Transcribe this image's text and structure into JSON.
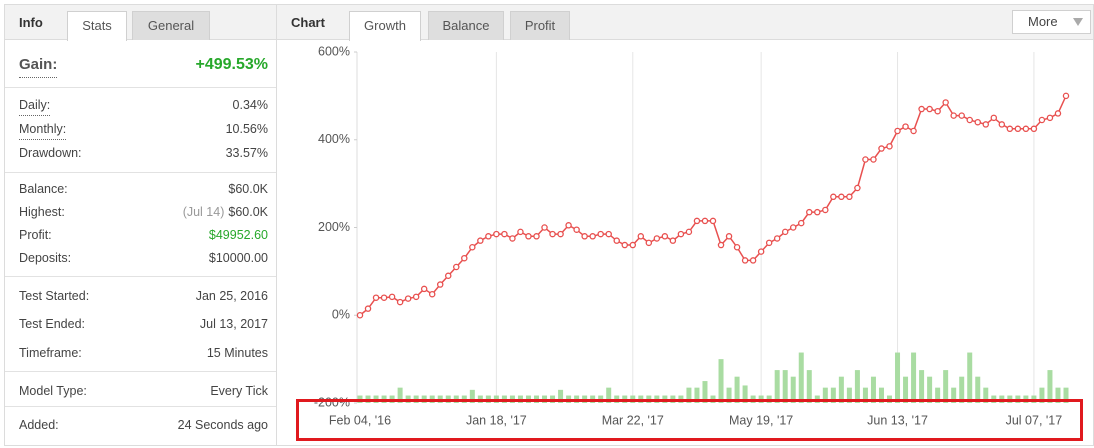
{
  "stats_panel": {
    "title": "Info",
    "tabs": [
      "Stats",
      "General"
    ],
    "gain": {
      "label": "Gain:",
      "value": "+499.53%"
    },
    "sections": [
      [
        {
          "label": "Daily:",
          "value": "0.34%"
        },
        {
          "label": "Monthly:",
          "value": "10.56%"
        },
        {
          "label": "Drawdown:",
          "value": "33.57%"
        }
      ],
      [
        {
          "label": "Balance:",
          "value": "$60.0K"
        },
        {
          "label": "Highest:",
          "note": "(Jul 14)",
          "value": "$60.0K"
        },
        {
          "label": "Profit:",
          "value": "$49952.60"
        },
        {
          "label": "Deposits:",
          "value": "$10000.00"
        }
      ],
      [
        {
          "label": "Test Started:",
          "value": "Jan 25, 2016"
        },
        {
          "label": "Test Ended:",
          "value": "Jul 13, 2017"
        },
        {
          "label": "Timeframe:",
          "value": "15 Minutes"
        }
      ],
      [
        {
          "label": "Model Type:",
          "value": "Every Tick"
        }
      ],
      [
        {
          "label": "Added:",
          "value": "24 Seconds ago"
        }
      ]
    ]
  },
  "chart_panel": {
    "title": "Chart",
    "tabs": [
      "Growth",
      "Balance",
      "Profit"
    ],
    "more": "More"
  },
  "chart_data": {
    "type": "line",
    "categories": [
      "Feb 04, '16",
      null,
      null,
      null,
      null,
      null,
      null,
      null,
      null,
      null,
      null,
      null,
      null,
      null,
      null,
      null,
      null,
      "Jan 18, '17",
      null,
      null,
      null,
      null,
      null,
      null,
      null,
      null,
      null,
      null,
      null,
      null,
      null,
      null,
      null,
      null,
      "Mar 22, '17",
      null,
      null,
      null,
      null,
      null,
      null,
      null,
      null,
      null,
      null,
      null,
      null,
      null,
      null,
      null,
      "May 19, '17",
      null,
      null,
      null,
      null,
      null,
      null,
      null,
      null,
      null,
      null,
      null,
      null,
      null,
      null,
      null,
      null,
      "Jun 13, '17",
      null,
      null,
      null,
      null,
      null,
      null,
      null,
      null,
      null,
      null,
      null,
      null,
      null,
      null,
      null,
      null,
      "Jul 07, '17",
      null,
      null,
      null,
      null
    ],
    "series": [
      {
        "type": "line",
        "color": "#e8504f",
        "values": [
          0,
          15,
          40,
          40,
          42,
          30,
          38,
          42,
          60,
          48,
          70,
          90,
          110,
          130,
          155,
          170,
          180,
          185,
          185,
          175,
          190,
          180,
          180,
          200,
          185,
          185,
          205,
          195,
          180,
          180,
          185,
          185,
          170,
          160,
          160,
          180,
          165,
          175,
          180,
          170,
          185,
          190,
          215,
          215,
          215,
          160,
          180,
          155,
          125,
          125,
          145,
          165,
          175,
          190,
          200,
          210,
          235,
          235,
          240,
          270,
          270,
          270,
          290,
          355,
          355,
          380,
          385,
          420,
          430,
          420,
          470,
          470,
          465,
          485,
          455,
          455,
          445,
          440,
          435,
          450,
          435,
          425,
          425,
          425,
          425,
          445,
          450,
          460,
          500
        ]
      },
      {
        "type": "bar",
        "color": "#a9dca2",
        "values": [
          -183,
          -183,
          -183,
          -183,
          -183,
          -165,
          -183,
          -183,
          -183,
          -183,
          -183,
          -183,
          -183,
          -183,
          -170,
          -183,
          -183,
          -183,
          -183,
          -183,
          -183,
          -183,
          -183,
          -183,
          -183,
          -170,
          -183,
          -183,
          -183,
          -183,
          -183,
          -165,
          -183,
          -183,
          -183,
          -183,
          -183,
          -183,
          -183,
          -183,
          -183,
          -165,
          -165,
          -150,
          -183,
          -100,
          -165,
          -140,
          -160,
          -183,
          -183,
          -183,
          -125,
          -125,
          -140,
          -85,
          -125,
          -183,
          -165,
          -165,
          -140,
          -165,
          -125,
          -165,
          -140,
          -165,
          -183,
          -85,
          -140,
          -85,
          -125,
          -140,
          -165,
          -125,
          -165,
          -140,
          -85,
          -140,
          -165,
          -183,
          -183,
          -183,
          -183,
          -183,
          -183,
          -165,
          -125,
          -165,
          -165
        ]
      }
    ],
    "ylim": [
      -200,
      600
    ],
    "yticks": [
      {
        "value": -200,
        "label": "-200%"
      },
      {
        "value": 0,
        "label": "0%"
      },
      {
        "value": 200,
        "label": "200%"
      },
      {
        "value": 400,
        "label": "400%"
      },
      {
        "value": 600,
        "label": "600%"
      }
    ],
    "grid": true
  }
}
